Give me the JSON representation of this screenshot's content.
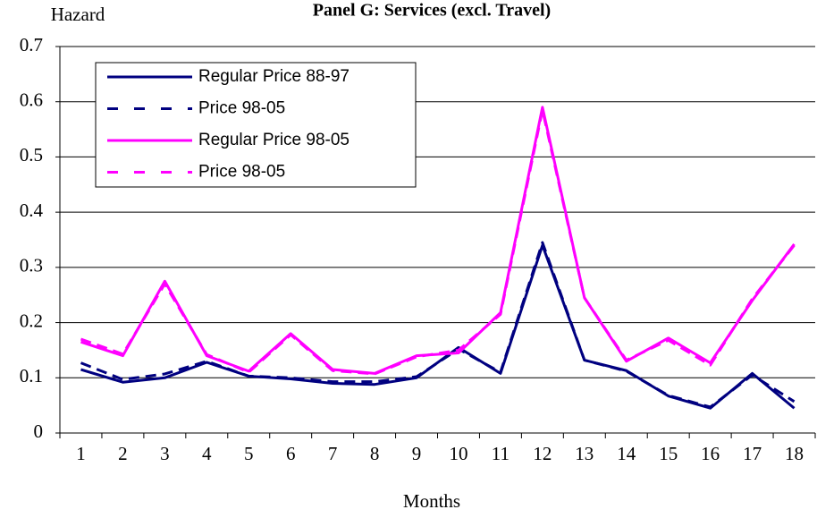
{
  "chart_data": {
    "type": "line",
    "title": "Panel G: Services (excl. Travel)",
    "y_label": "Hazard",
    "x_label": "Months",
    "categories": [
      "1",
      "2",
      "3",
      "4",
      "5",
      "6",
      "7",
      "8",
      "9",
      "10",
      "11",
      "12",
      "13",
      "14",
      "15",
      "16",
      "17",
      "18"
    ],
    "series": [
      {
        "name": "Regular Price 88-97",
        "color": "#000080",
        "dashed": false,
        "values": [
          0.115,
          0.092,
          0.1,
          0.128,
          0.103,
          0.098,
          0.09,
          0.088,
          0.1,
          0.155,
          0.108,
          0.34,
          0.132,
          0.113,
          0.067,
          0.045,
          0.108,
          0.045
        ]
      },
      {
        "name": "Price 98-05",
        "color": "#000080",
        "dashed": true,
        "values": [
          0.127,
          0.097,
          0.107,
          0.13,
          0.103,
          0.1,
          0.093,
          0.093,
          0.102,
          0.152,
          0.11,
          0.345,
          0.132,
          0.112,
          0.068,
          0.047,
          0.105,
          0.057
        ]
      },
      {
        "name": "Regular Price 98-05",
        "color": "#ff00ff",
        "dashed": false,
        "values": [
          0.165,
          0.14,
          0.275,
          0.14,
          0.112,
          0.18,
          0.115,
          0.108,
          0.14,
          0.145,
          0.218,
          0.59,
          0.245,
          0.13,
          0.172,
          0.127,
          0.24,
          0.342
        ]
      },
      {
        "name": "Price 98-05",
        "color": "#ff00ff",
        "dashed": true,
        "values": [
          0.17,
          0.143,
          0.27,
          0.142,
          0.11,
          0.178,
          0.113,
          0.107,
          0.138,
          0.15,
          0.215,
          0.585,
          0.245,
          0.132,
          0.168,
          0.123,
          0.243,
          0.34
        ]
      }
    ],
    "ylim": [
      0,
      0.7
    ],
    "yticks": [
      0,
      0.1,
      0.2,
      0.3,
      0.4,
      0.5,
      0.6,
      0.7
    ],
    "grid": true
  }
}
